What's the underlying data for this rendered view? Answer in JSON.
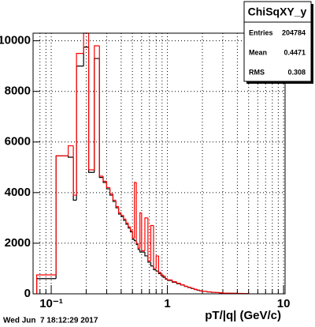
{
  "chart_data": {
    "type": "histogram",
    "bins": [
      0.075,
      0.11,
      0.14,
      0.155,
      0.165,
      0.19,
      0.21,
      0.235,
      0.26,
      0.28,
      0.3,
      0.32,
      0.34,
      0.36,
      0.38,
      0.4,
      0.42,
      0.44,
      0.46,
      0.48,
      0.5,
      0.52,
      0.54,
      0.56,
      0.58,
      0.6,
      0.64,
      0.68,
      0.72,
      0.76,
      0.8,
      0.84,
      0.88,
      0.92,
      0.96,
      1.0,
      1.1,
      1.2,
      1.3,
      1.4,
      1.5,
      1.6,
      1.7,
      1.8,
      1.9,
      2.0,
      2.2,
      2.4,
      2.6,
      2.8,
      3.0,
      3.5,
      4.0,
      4.5,
      5.0
    ],
    "series": [
      {
        "color": "#000000",
        "values": [
          600,
          5450,
          5400,
          3700,
          9000,
          9750,
          4800,
          9300,
          4600,
          4400,
          4150,
          3900,
          3650,
          3400,
          3150,
          3050,
          2900,
          2750,
          2600,
          2450,
          2150,
          2100,
          1950,
          1750,
          1650,
          1650,
          1500,
          1250,
          1100,
          950,
          900,
          800,
          720,
          650,
          580,
          530,
          460,
          400,
          350,
          290,
          250,
          210,
          170,
          140,
          115,
          95,
          75,
          58,
          48,
          38,
          28,
          19,
          14,
          9
        ]
      },
      {
        "color": "#ff0000",
        "values": [
          750,
          5450,
          5850,
          3900,
          9500,
          10300,
          4900,
          9800,
          4650,
          4450,
          4200,
          3950,
          3700,
          3450,
          3200,
          3100,
          2950,
          2800,
          2650,
          2500,
          2200,
          4400,
          2000,
          1800,
          3200,
          1700,
          3000,
          1300,
          2700,
          1000,
          1500,
          850,
          750,
          700,
          600,
          550,
          480,
          420,
          360,
          300,
          260,
          220,
          180,
          150,
          120,
          100,
          80,
          60,
          50,
          40,
          30,
          20,
          15,
          10
        ]
      }
    ],
    "xlabel": "pT/|q| (GeV/c)",
    "log_x": true,
    "xlim": [
      0.0698,
      10.3
    ],
    "xticks": [
      {
        "value": 0.1,
        "label": "10⁻¹"
      },
      1,
      10
    ],
    "xminorticks": [
      0.08,
      0.09,
      0.2,
      0.3,
      0.4,
      0.5,
      0.6,
      0.7,
      0.8,
      0.9,
      2,
      3,
      4,
      5,
      6,
      7,
      8,
      9
    ],
    "ylim": [
      0,
      10300
    ],
    "yticks": [
      0,
      2000,
      4000,
      6000,
      8000,
      10000
    ],
    "grid": true,
    "stats": {
      "title": "ChiSqXY_y",
      "rows": [
        [
          "Entries",
          "204784"
        ],
        [
          "Mean",
          "0.4471"
        ],
        [
          "RMS",
          "0.308"
        ]
      ]
    },
    "footer": "Wed Jun  7 18:12:29 2017"
  }
}
